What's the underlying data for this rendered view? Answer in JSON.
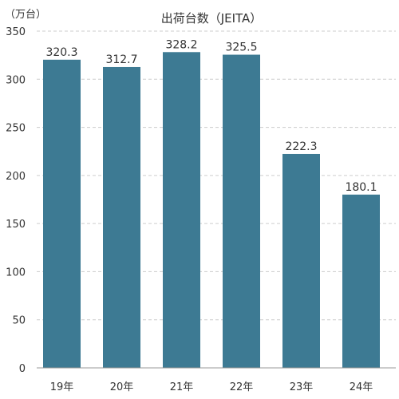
{
  "chart_data": {
    "type": "bar",
    "title": "出荷台数（JEITA）",
    "unit_label": "（万台）",
    "categories": [
      "19年",
      "20年",
      "21年",
      "22年",
      "23年",
      "24年"
    ],
    "values": [
      320.3,
      312.7,
      328.2,
      325.5,
      222.3,
      180.1
    ],
    "data_labels": [
      "320.3",
      "312.7",
      "328.2",
      "325.5",
      "222.3",
      "180.1"
    ],
    "yticks": [
      0,
      50,
      100,
      150,
      200,
      250,
      300,
      350
    ],
    "ylim": [
      0,
      350
    ],
    "grid": true,
    "bar_color": "#3d7a93",
    "grid_color": "#cccccc",
    "axis_color": "#999999"
  }
}
